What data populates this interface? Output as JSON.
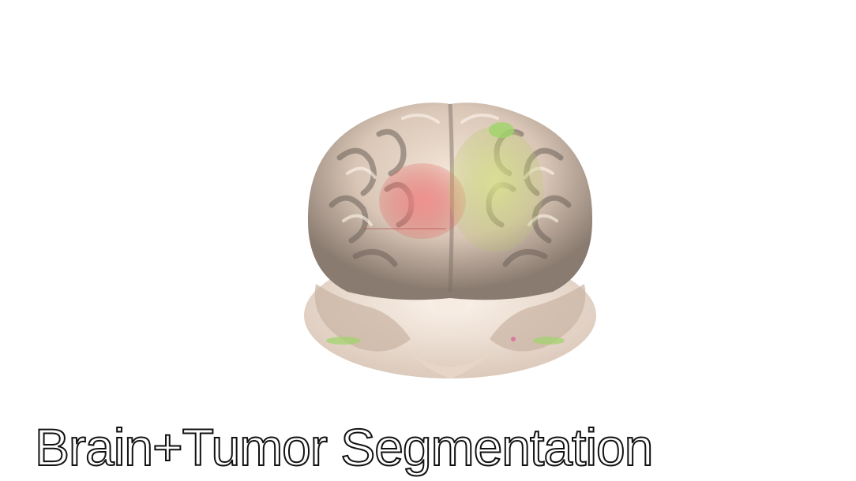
{
  "caption": {
    "text": "Brain+Tumor Segmentation"
  },
  "render": {
    "brain_color": "#d9c6b6",
    "brain_shadow_color": "#6e625a",
    "tumor_color": "#e05a5a",
    "edema_color": "#c9d97a",
    "highlight_color": "#9fd46a",
    "background_color": "#ffffff"
  }
}
